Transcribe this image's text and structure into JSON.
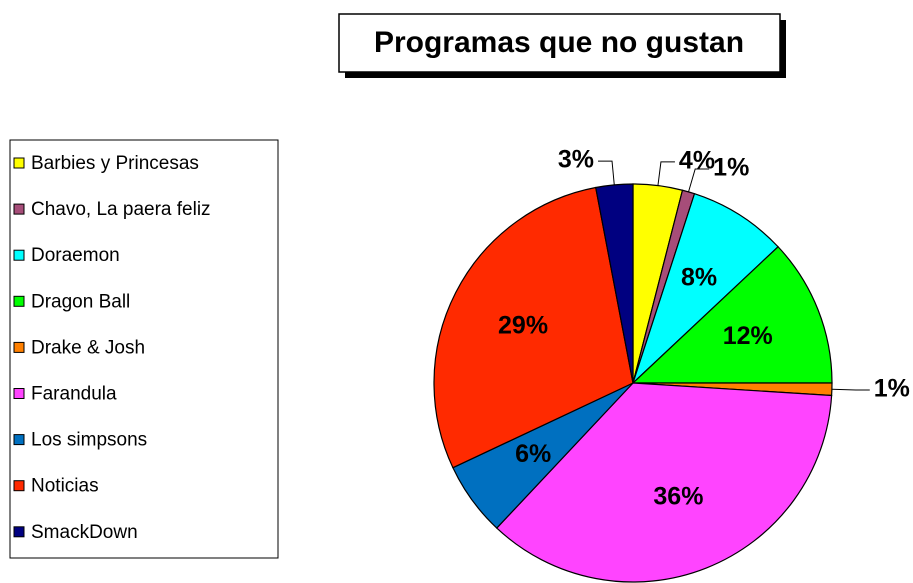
{
  "chart_data": {
    "type": "pie",
    "title": "Programas que no gustan",
    "categories": [
      "Barbies y Princesas",
      "Chavo, La paera feliz",
      "Doraemon",
      "Dragon Ball",
      "Drake & Josh",
      "Farandula",
      "Los simpsons",
      "Noticias",
      "SmackDown"
    ],
    "values": [
      4,
      1,
      8,
      12,
      1,
      36,
      6,
      29,
      3
    ],
    "value_labels": [
      "4%",
      "1%",
      "8%",
      "12%",
      "1%",
      "36%",
      "6%",
      "29%",
      "3%"
    ],
    "colors": [
      "#ffff00",
      "#a64d79",
      "#00ffff",
      "#00ff00",
      "#ff8000",
      "#ff44ff",
      "#0070c0",
      "#ff2a00",
      "#000080"
    ],
    "legend": "left"
  }
}
